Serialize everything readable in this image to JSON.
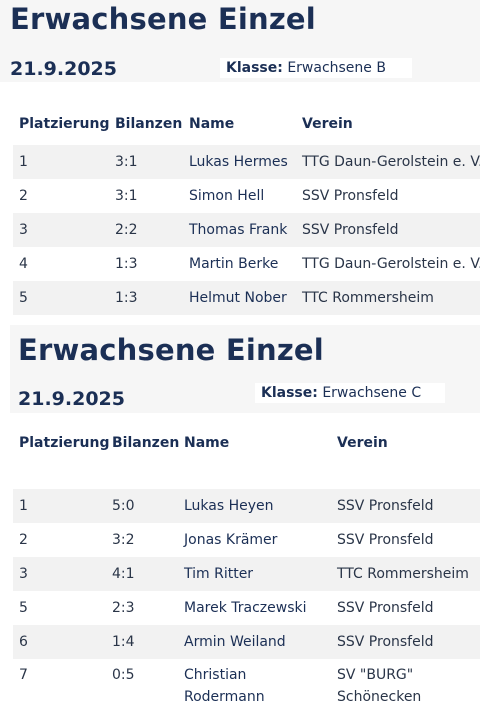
{
  "tables": [
    {
      "title": "Erwachsene Einzel",
      "date": "21.9.2025",
      "klasse_label": "Klasse:",
      "klasse_value": "Erwachsene B",
      "headers": [
        "Platzierung",
        "Bilanzen",
        "Name",
        "Verein"
      ],
      "rows": [
        {
          "place": "1",
          "score": "3:1",
          "name": "Lukas Hermes",
          "club": "TTG Daun-Gerolstein e. V."
        },
        {
          "place": "2",
          "score": "3:1",
          "name": "Simon Hell",
          "club": "SSV Pronsfeld"
        },
        {
          "place": "3",
          "score": "2:2",
          "name": "Thomas Frank",
          "club": "SSV Pronsfeld"
        },
        {
          "place": "4",
          "score": "1:3",
          "name": "Martin Berke",
          "club": "TTG Daun-Gerolstein e. V."
        },
        {
          "place": "5",
          "score": "1:3",
          "name": "Helmut Nober",
          "club": "TTC Rommersheim"
        }
      ]
    },
    {
      "title": "Erwachsene Einzel",
      "date": "21.9.2025",
      "klasse_label": "Klasse:",
      "klasse_value": "Erwachsene C",
      "headers": [
        "Platzierung",
        "Bilanzen",
        "Name",
        "Verein"
      ],
      "rows": [
        {
          "place": "1",
          "score": "5:0",
          "name": "Lukas Heyen",
          "club": "SSV Pronsfeld"
        },
        {
          "place": "2",
          "score": "3:2",
          "name": "Jonas Krämer",
          "club": "SSV Pronsfeld"
        },
        {
          "place": "3",
          "score": "4:1",
          "name": "Tim Ritter",
          "club": "TTC Rommersheim"
        },
        {
          "place": "5",
          "score": "2:3",
          "name": "Marek Traczewski",
          "club": "SSV Pronsfeld"
        },
        {
          "place": "6",
          "score": "1:4",
          "name": "Armin Weiland",
          "club": "SSV Pronsfeld"
        },
        {
          "place": "7",
          "score": "0:5",
          "name": "Christian Rodermann",
          "club": "SV \"BURG\" Schönecken"
        }
      ]
    }
  ]
}
